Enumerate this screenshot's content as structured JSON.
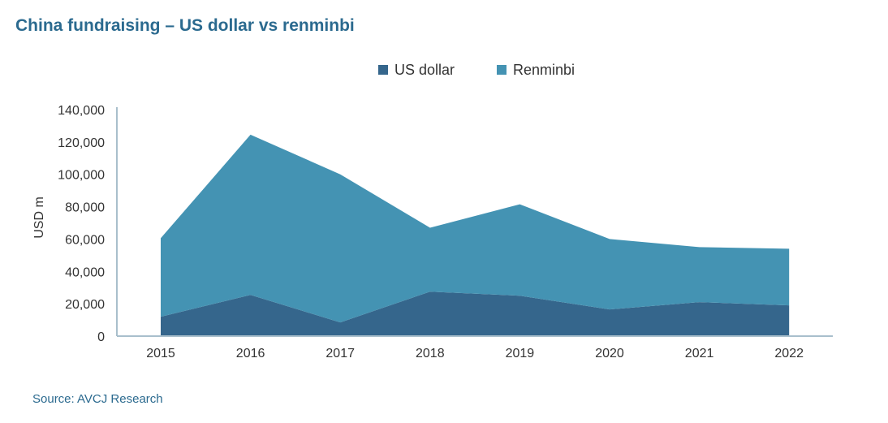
{
  "title": "China fundraising – US dollar vs renminbi",
  "source": "Source: AVCJ Research",
  "colors": {
    "us_dollar": "#35668c",
    "renminbi": "#4493b3",
    "axis": "#a9bfcc",
    "title": "#2b6a8f",
    "text": "#333333"
  },
  "chart_data": {
    "type": "area",
    "stacked": true,
    "title": "China fundraising – US dollar vs renminbi",
    "xlabel": "",
    "ylabel": "USD m",
    "ylim": [
      0,
      140000
    ],
    "y_ticks": [
      0,
      20000,
      40000,
      60000,
      80000,
      100000,
      120000,
      140000
    ],
    "y_tick_labels": [
      "0",
      "20,000",
      "40,000",
      "60,000",
      "80,000",
      "100,000",
      "120,000",
      "140,000"
    ],
    "categories": [
      "2015",
      "2016",
      "2017",
      "2018",
      "2019",
      "2020",
      "2021",
      "2022"
    ],
    "legend_position": "top-center",
    "grid": false,
    "series": [
      {
        "name": "US dollar",
        "color_key": "us_dollar",
        "values": [
          12000,
          25500,
          8500,
          27500,
          25000,
          16500,
          21000,
          19000
        ]
      },
      {
        "name": "Renminbi",
        "color_key": "renminbi",
        "values": [
          48500,
          99000,
          91500,
          39500,
          56500,
          43500,
          34000,
          35000
        ]
      }
    ]
  }
}
